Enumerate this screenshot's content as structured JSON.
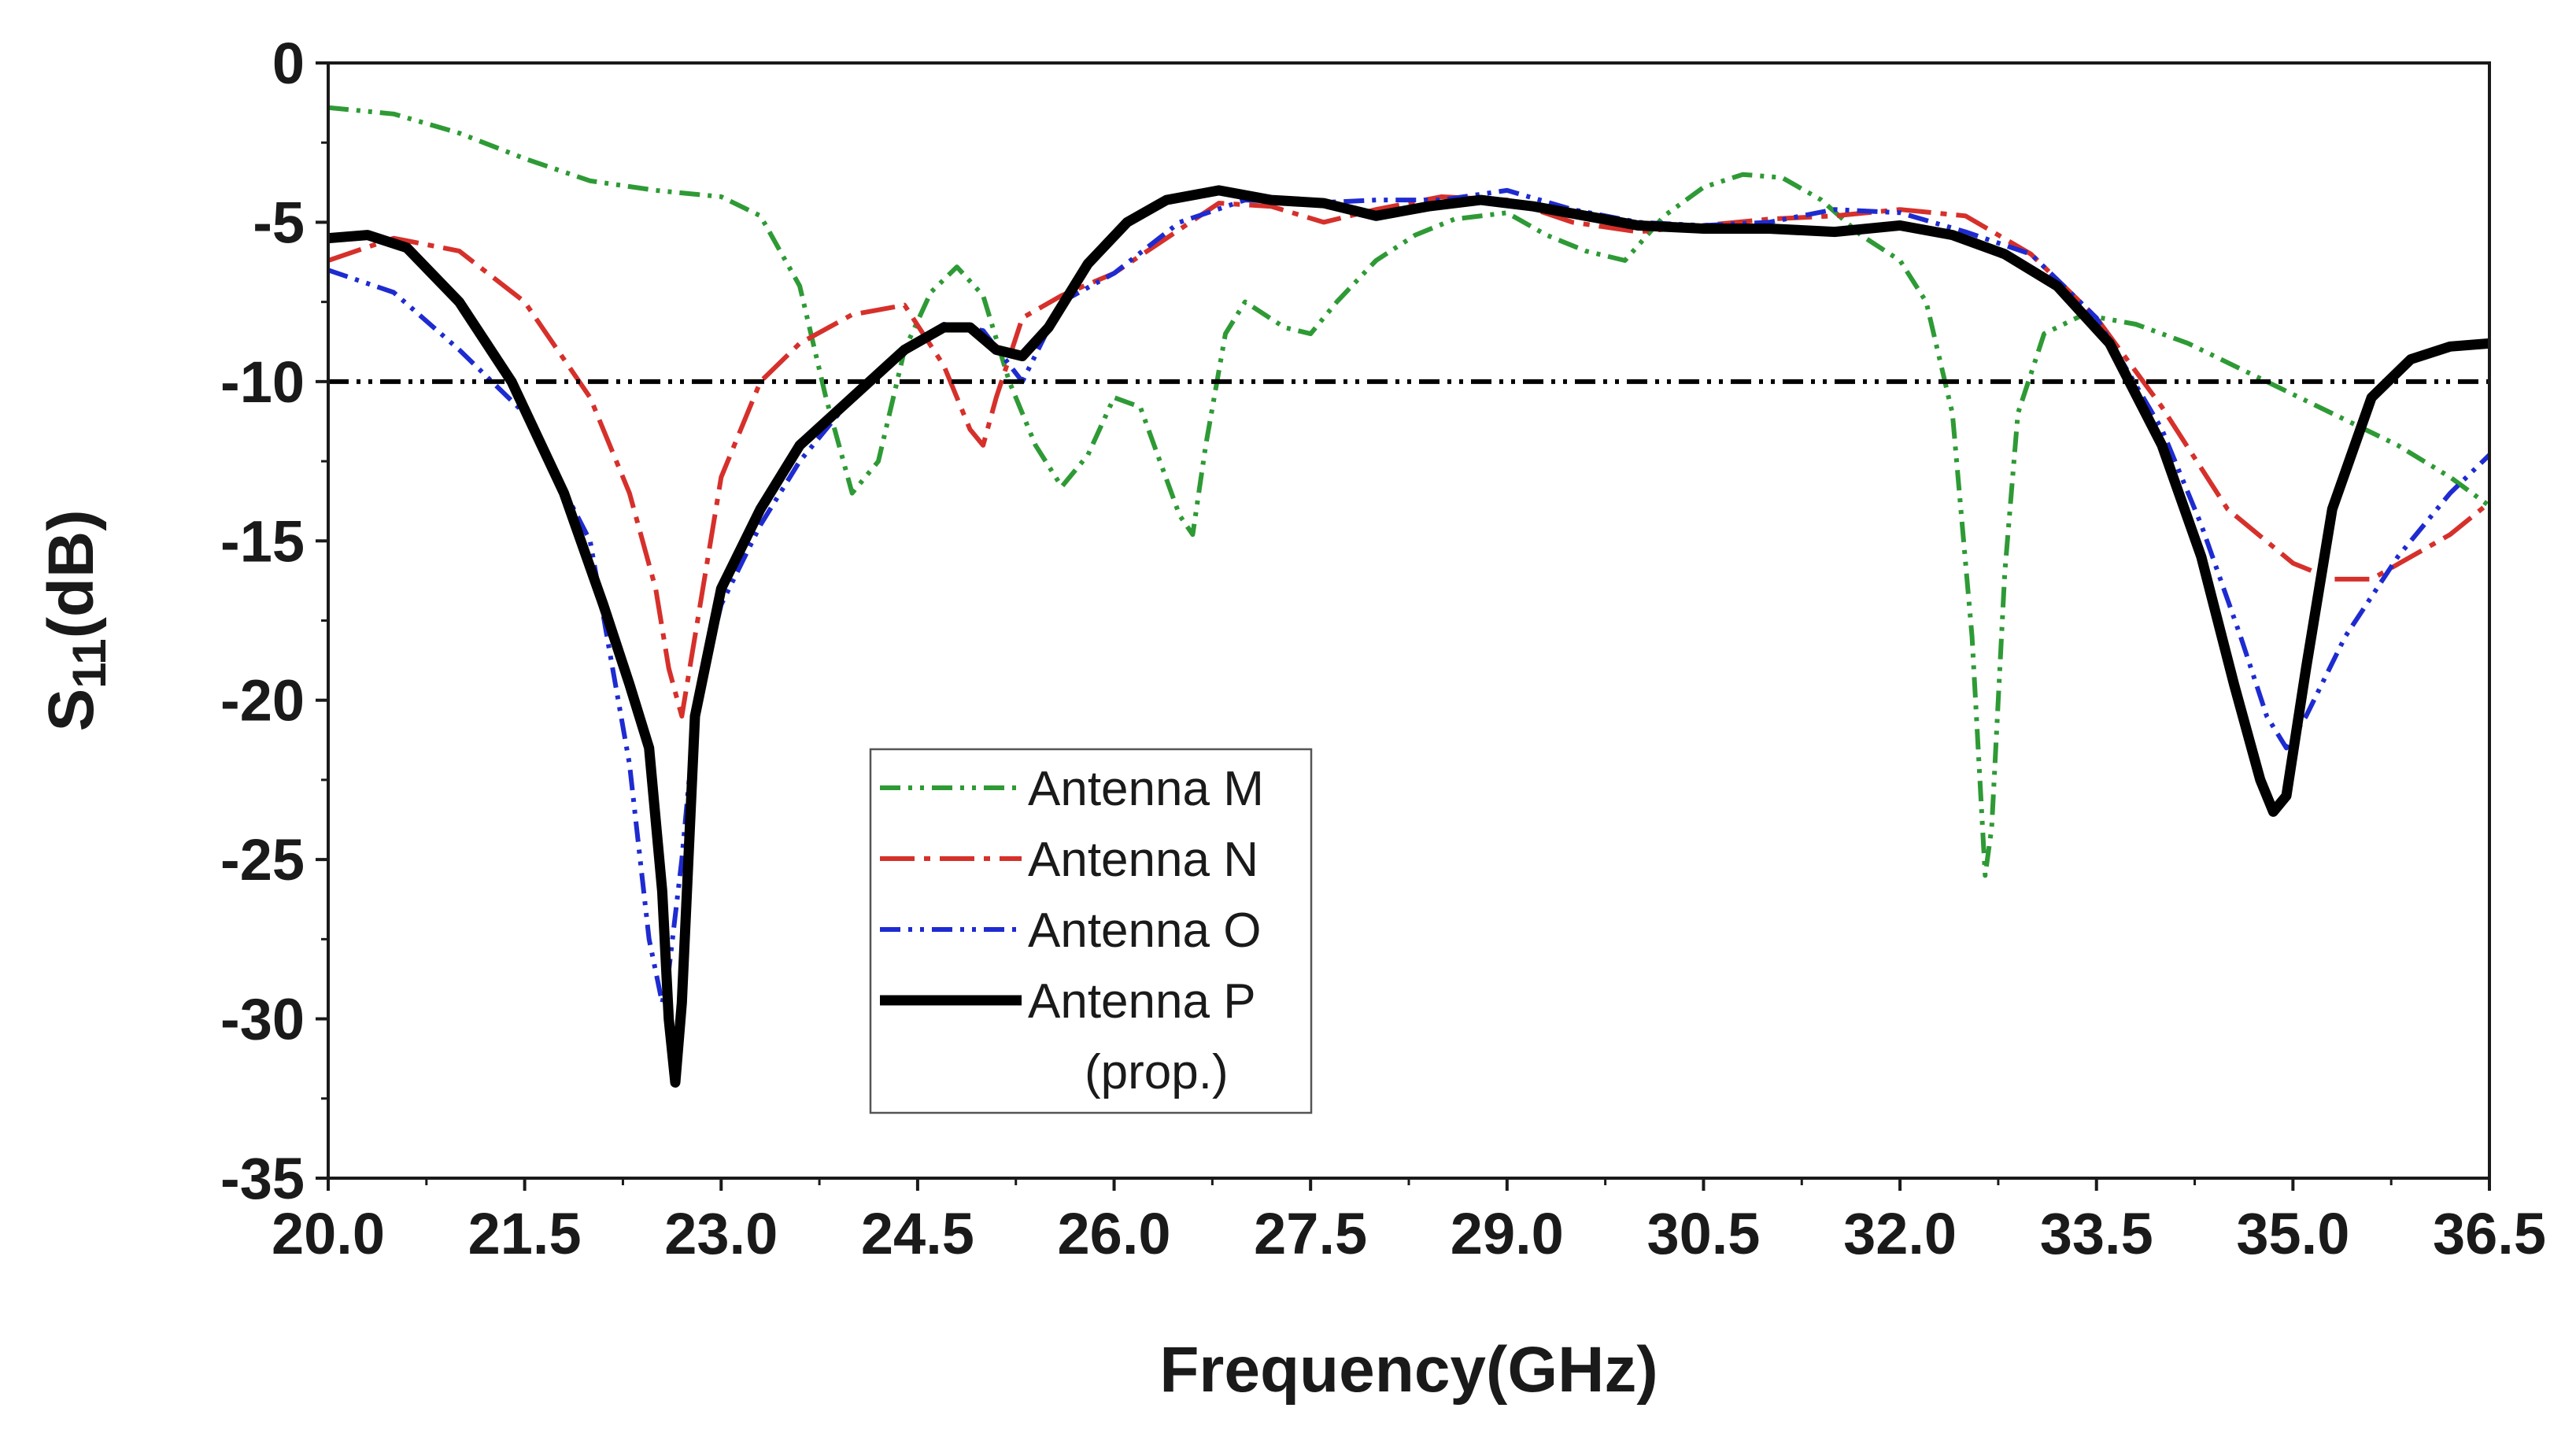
{
  "chart_data": {
    "type": "line",
    "title": "",
    "xlabel": "Frequency(GHz)",
    "ylabel_main": "S",
    "ylabel_sub": "11",
    "ylabel_suffix": "(dB)",
    "xlim": [
      20.0,
      36.5
    ],
    "ylim": [
      -35,
      0
    ],
    "x_ticks": [
      20.0,
      21.5,
      23.0,
      24.5,
      26.0,
      27.5,
      29.0,
      30.5,
      32.0,
      33.5,
      35.0,
      36.5
    ],
    "x_tick_labels": [
      "20.0",
      "21.5",
      "23.0",
      "24.5",
      "26.0",
      "27.5",
      "29.0",
      "30.5",
      "32.0",
      "33.5",
      "35.0",
      "36.5"
    ],
    "y_ticks": [
      0,
      -5,
      -10,
      -15,
      -20,
      -25,
      -30,
      -35
    ],
    "y_tick_labels": [
      "0",
      "-5",
      "-10",
      "-15",
      "-20",
      "-25",
      "-30",
      "-35"
    ],
    "grid": false,
    "legend_position": "center-left",
    "reference_line": {
      "y": -10,
      "color": "#000000",
      "style": "dash-dot-dot"
    },
    "series": [
      {
        "name": "Antenna M",
        "legend_label": [
          "Antenna M"
        ],
        "color": "#2e9a35",
        "style": "dash-dot-dot",
        "width": "thin",
        "x": [
          20.0,
          20.5,
          21.0,
          21.5,
          22.0,
          22.5,
          23.0,
          23.3,
          23.6,
          23.8,
          24.0,
          24.2,
          24.4,
          24.6,
          24.8,
          25.0,
          25.2,
          25.4,
          25.6,
          25.8,
          26.0,
          26.2,
          26.35,
          26.5,
          26.6,
          26.7,
          26.85,
          27.0,
          27.3,
          27.5,
          27.7,
          28.0,
          28.3,
          28.6,
          29.0,
          29.3,
          29.6,
          29.9,
          30.2,
          30.5,
          30.8,
          31.1,
          31.4,
          31.7,
          32.0,
          32.2,
          32.4,
          32.55,
          32.65,
          32.7,
          32.8,
          32.9,
          33.1,
          33.4,
          33.8,
          34.2,
          34.6,
          35.0,
          35.4,
          35.8,
          36.2,
          36.5
        ],
        "y": [
          -1.4,
          -1.6,
          -2.2,
          -3.0,
          -3.7,
          -4.0,
          -4.2,
          -4.8,
          -7.0,
          -10.5,
          -13.5,
          -12.5,
          -9.0,
          -7.2,
          -6.4,
          -7.3,
          -10.0,
          -12.0,
          -13.3,
          -12.3,
          -10.5,
          -10.8,
          -12.5,
          -14.2,
          -14.8,
          -12.0,
          -8.5,
          -7.5,
          -8.3,
          -8.5,
          -7.5,
          -6.2,
          -5.4,
          -4.9,
          -4.7,
          -5.4,
          -5.9,
          -6.2,
          -4.8,
          -3.9,
          -3.5,
          -3.6,
          -4.3,
          -5.4,
          -6.2,
          -7.5,
          -11.0,
          -18.0,
          -25.5,
          -24.0,
          -16.0,
          -11.0,
          -8.5,
          -7.9,
          -8.2,
          -8.8,
          -9.6,
          -10.4,
          -11.2,
          -12.0,
          -13.0,
          -13.9
        ]
      },
      {
        "name": "Antenna N",
        "legend_label": [
          "Antenna N"
        ],
        "color": "#d6302b",
        "style": "long-dash-dot",
        "width": "thin",
        "x": [
          20.0,
          20.5,
          21.0,
          21.5,
          22.0,
          22.3,
          22.5,
          22.6,
          22.7,
          22.8,
          23.0,
          23.3,
          23.6,
          24.0,
          24.4,
          24.7,
          24.9,
          25.0,
          25.1,
          25.3,
          25.6,
          26.0,
          26.4,
          26.8,
          27.2,
          27.6,
          28.0,
          28.5,
          29.0,
          29.5,
          30.0,
          30.5,
          31.0,
          31.5,
          32.0,
          32.5,
          33.0,
          33.5,
          34.0,
          34.5,
          35.0,
          35.3,
          35.6,
          35.9,
          36.2,
          36.5
        ],
        "y": [
          -6.2,
          -5.5,
          -5.9,
          -7.5,
          -10.5,
          -13.5,
          -16.5,
          -19.0,
          -20.5,
          -18.0,
          -13.0,
          -10.0,
          -8.8,
          -7.9,
          -7.6,
          -9.5,
          -11.5,
          -12.0,
          -10.5,
          -8.0,
          -7.3,
          -6.6,
          -5.5,
          -4.4,
          -4.5,
          -5.0,
          -4.6,
          -4.2,
          -4.3,
          -5.0,
          -5.3,
          -5.1,
          -4.9,
          -4.8,
          -4.6,
          -4.8,
          -6.0,
          -8.0,
          -10.8,
          -14.0,
          -15.7,
          -16.2,
          -16.2,
          -15.5,
          -14.8,
          -13.8
        ]
      },
      {
        "name": "Antenna O",
        "legend_label": [
          "Antenna O"
        ],
        "color": "#1e2bd0",
        "style": "dash-dot-dot",
        "width": "thin",
        "x": [
          20.0,
          20.5,
          21.0,
          21.5,
          22.0,
          22.3,
          22.45,
          22.55,
          22.6,
          22.7,
          22.8,
          23.0,
          23.3,
          23.6,
          24.0,
          24.4,
          24.7,
          25.0,
          25.3,
          25.6,
          26.0,
          26.5,
          27.0,
          27.5,
          28.0,
          28.5,
          29.0,
          29.5,
          30.0,
          30.5,
          31.0,
          31.5,
          32.0,
          32.5,
          33.0,
          33.5,
          34.0,
          34.3,
          34.6,
          34.8,
          34.95,
          35.1,
          35.4,
          35.8,
          36.2,
          36.5
        ],
        "y": [
          -6.5,
          -7.2,
          -9.0,
          -11.0,
          -15.0,
          -22.0,
          -27.5,
          -29.5,
          -28.5,
          -25.0,
          -20.5,
          -17.0,
          -14.5,
          -12.5,
          -10.5,
          -9.0,
          -8.2,
          -8.4,
          -10.0,
          -7.5,
          -6.6,
          -5.0,
          -4.3,
          -4.4,
          -4.3,
          -4.3,
          -4.0,
          -4.6,
          -5.0,
          -5.1,
          -5.0,
          -4.6,
          -4.7,
          -5.3,
          -6.0,
          -8.0,
          -11.5,
          -14.5,
          -18.0,
          -20.5,
          -21.5,
          -20.5,
          -18.0,
          -15.5,
          -13.5,
          -12.3
        ]
      },
      {
        "name": "Antenna P (prop.)",
        "legend_label": [
          "Antenna P",
          "(prop.)"
        ],
        "color": "#000000",
        "style": "solid",
        "width": "thick",
        "x": [
          20.0,
          20.3,
          20.6,
          21.0,
          21.4,
          21.8,
          22.1,
          22.3,
          22.45,
          22.55,
          22.6,
          22.65,
          22.7,
          22.8,
          23.0,
          23.3,
          23.6,
          24.0,
          24.4,
          24.7,
          24.9,
          25.1,
          25.3,
          25.5,
          25.8,
          26.1,
          26.4,
          26.8,
          27.2,
          27.6,
          28.0,
          28.4,
          28.8,
          29.2,
          29.6,
          30.0,
          30.5,
          31.0,
          31.5,
          32.0,
          32.4,
          32.8,
          33.2,
          33.6,
          34.0,
          34.3,
          34.55,
          34.75,
          34.85,
          34.95,
          35.1,
          35.3,
          35.6,
          35.9,
          36.2,
          36.5
        ],
        "y": [
          -5.5,
          -5.4,
          -5.8,
          -7.5,
          -10.0,
          -13.5,
          -17.0,
          -19.5,
          -21.5,
          -26.0,
          -30.0,
          -32.0,
          -29.5,
          -20.5,
          -16.5,
          -14.0,
          -12.0,
          -10.5,
          -9.0,
          -8.3,
          -8.3,
          -9.0,
          -9.2,
          -8.3,
          -6.3,
          -5.0,
          -4.3,
          -4.0,
          -4.3,
          -4.4,
          -4.8,
          -4.5,
          -4.3,
          -4.5,
          -4.8,
          -5.1,
          -5.2,
          -5.2,
          -5.3,
          -5.1,
          -5.4,
          -6.0,
          -7.0,
          -8.8,
          -12.0,
          -15.5,
          -19.5,
          -22.5,
          -23.5,
          -23.0,
          -19.0,
          -14.0,
          -10.5,
          -9.3,
          -8.9,
          -8.8
        ]
      }
    ]
  }
}
